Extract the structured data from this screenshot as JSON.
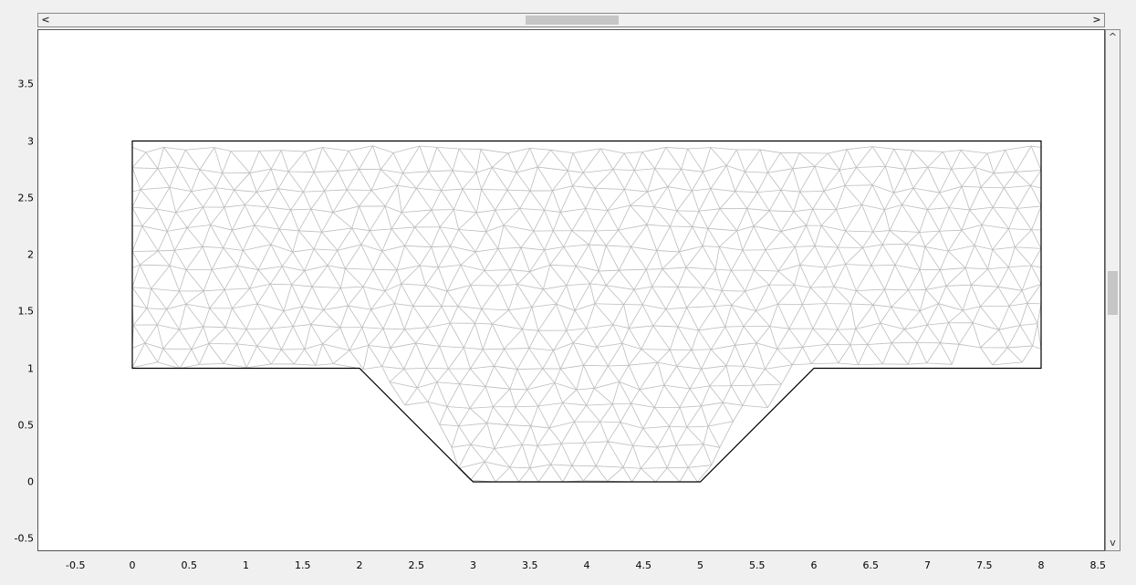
{
  "scrollbars": {
    "horizontal": {
      "left_glyph": "<",
      "right_glyph": ">"
    },
    "vertical": {
      "up_glyph": "^",
      "down_glyph": "v"
    }
  },
  "chart_data": {
    "type": "mesh",
    "xlim": [
      -0.75,
      8.6
    ],
    "ylim": [
      -0.6,
      4.0
    ],
    "x_ticks": [
      "-0.5",
      "0",
      "0.5",
      "1",
      "1.5",
      "2",
      "2.5",
      "3",
      "3.5",
      "4",
      "4.5",
      "5",
      "5.5",
      "6",
      "6.5",
      "7",
      "7.5",
      "8",
      "8.5"
    ],
    "y_ticks": [
      "3.5",
      "3",
      "2.5",
      "2",
      "1.5",
      "1",
      "0.5",
      "0",
      "-0.5"
    ],
    "boundary": [
      [
        0,
        1
      ],
      [
        2,
        1
      ],
      [
        3,
        0
      ],
      [
        5,
        0
      ],
      [
        6,
        1
      ],
      [
        8,
        1
      ],
      [
        8,
        3
      ],
      [
        0,
        3
      ]
    ],
    "boundary_color": "#000000",
    "mesh_color": "#bdbdbd",
    "background_color": "#ffffff"
  }
}
